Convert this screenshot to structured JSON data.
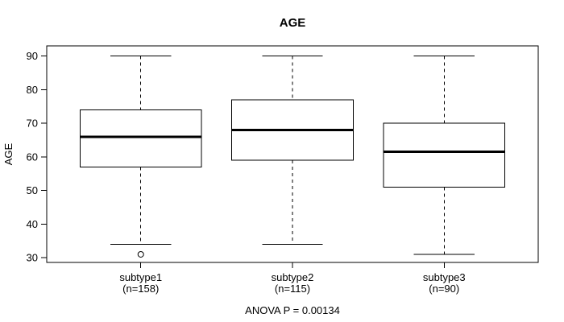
{
  "figure": {
    "background": "#ffffff",
    "stroke_color": "#000000"
  },
  "chart_data": {
    "type": "boxplot",
    "title": "AGE",
    "ylabel": "AGE",
    "xlabel": "",
    "ylim": [
      28.6,
      93.0
    ],
    "yticks": [
      30,
      40,
      50,
      60,
      70,
      80,
      90
    ],
    "grid": false,
    "legend": "none",
    "annotation": "ANOVA P = 0.00134",
    "categories": [
      "subtype1",
      "subtype2",
      "subtype3"
    ],
    "series": [
      {
        "name": "subtype1",
        "count_label": "(n=158)",
        "n": 158,
        "whisker_low": 34,
        "q1": 57,
        "median": 66,
        "q3": 74,
        "whisker_high": 90,
        "outliers": [
          31
        ]
      },
      {
        "name": "subtype2",
        "count_label": "(n=115)",
        "n": 115,
        "whisker_low": 34,
        "q1": 59,
        "median": 68,
        "q3": 77,
        "whisker_high": 90,
        "outliers": []
      },
      {
        "name": "subtype3",
        "count_label": "(n=90)",
        "n": 90,
        "whisker_low": 31,
        "q1": 51,
        "median": 61.5,
        "q3": 70,
        "whisker_high": 90,
        "outliers": []
      }
    ]
  }
}
